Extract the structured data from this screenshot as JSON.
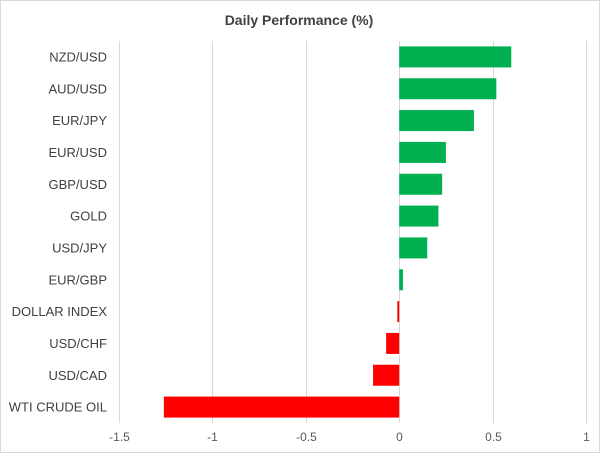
{
  "chart_data": {
    "type": "bar",
    "orientation": "horizontal",
    "title": "Daily Performance (%)",
    "xlabel": "",
    "ylabel": "",
    "xlim": [
      -1.5,
      1
    ],
    "x_ticks": [
      -1.5,
      -1,
      -0.5,
      0,
      0.5,
      1
    ],
    "x_tick_labels": [
      "-1.5",
      "-1",
      "-0.5",
      "0",
      "0.5",
      "1"
    ],
    "grid": true,
    "legend": "none",
    "categories": [
      "NZD/USD",
      "AUD/USD",
      "EUR/JPY",
      "EUR/USD",
      "GBP/USD",
      "GOLD",
      "USD/JPY",
      "EUR/GBP",
      "DOLLAR INDEX",
      "USD/CHF",
      "USD/CAD",
      "WTI CRUDE OIL"
    ],
    "values": [
      0.6,
      0.52,
      0.4,
      0.25,
      0.23,
      0.21,
      0.15,
      0.02,
      -0.01,
      -0.07,
      -0.14,
      -1.26
    ],
    "colors": {
      "positive": "#00b050",
      "negative": "#ff0000"
    }
  }
}
